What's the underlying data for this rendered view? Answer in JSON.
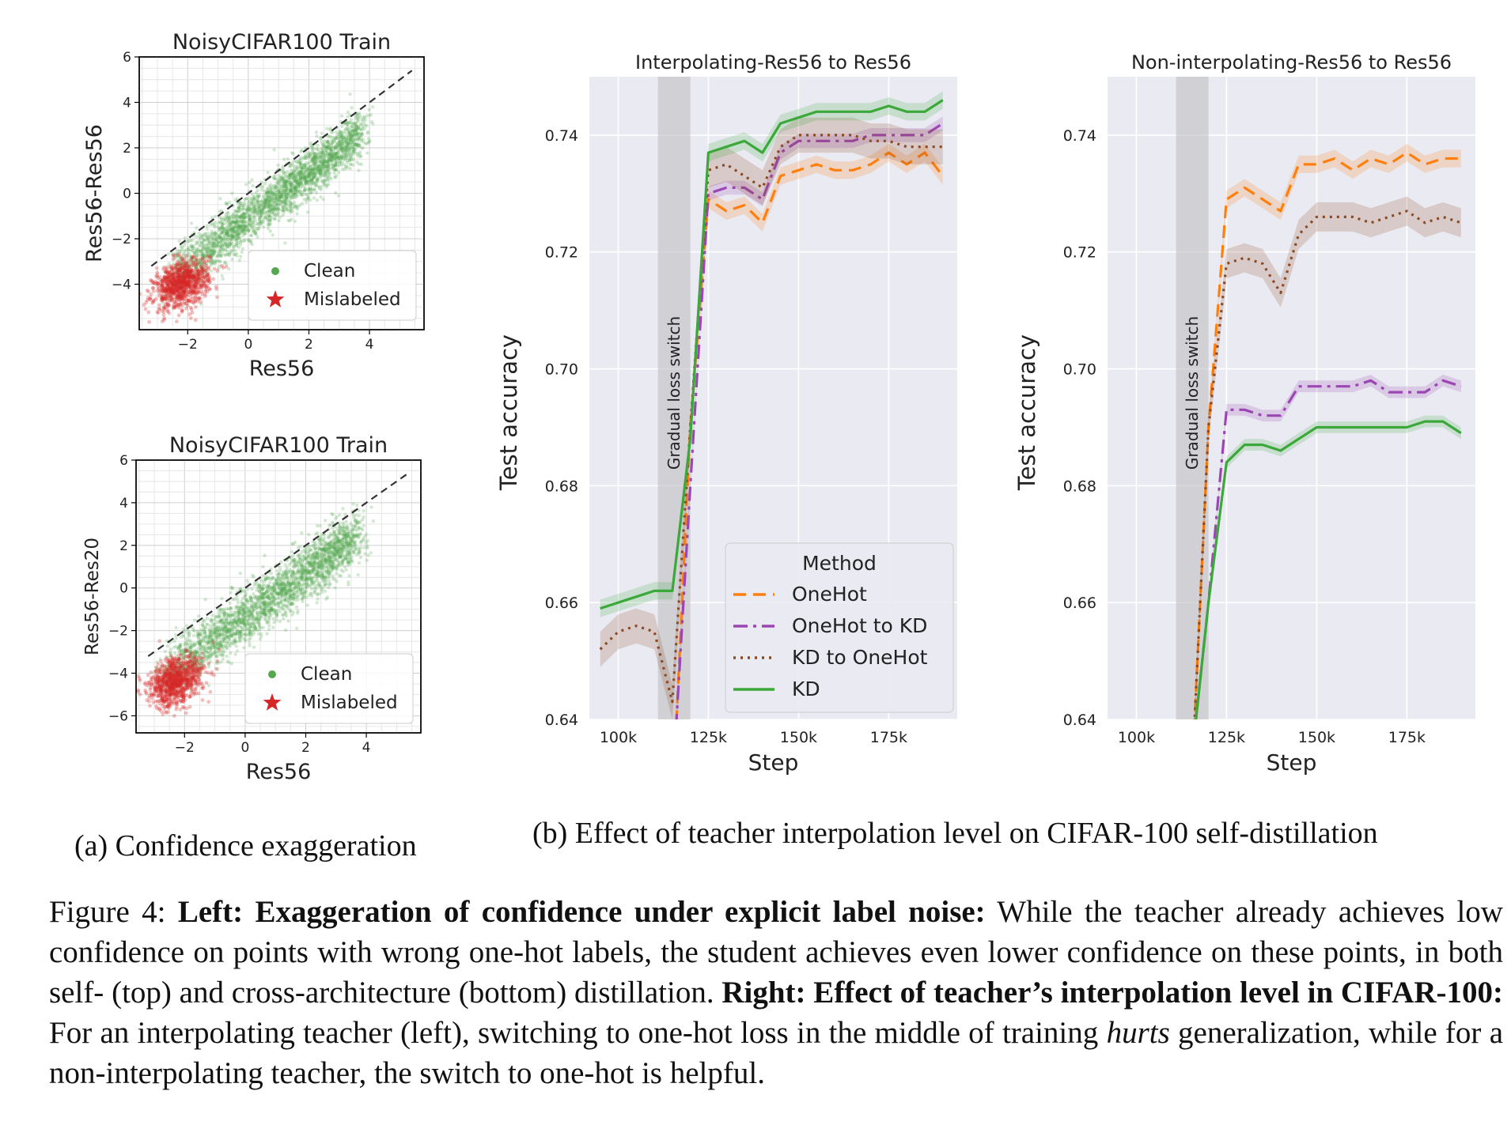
{
  "chart_data": [
    {
      "type": "scatter",
      "title": "NoisyCIFAR100 Train",
      "xlabel": "Res56",
      "ylabel": "Res56-Res56",
      "xlim": [
        -3.6,
        5.8
      ],
      "ylim": [
        -6.0,
        6.0
      ],
      "xticks": [
        "−2",
        "0",
        "2",
        "4"
      ],
      "yticks": [
        "6",
        "4",
        "2",
        "0",
        "−2",
        "−4"
      ],
      "ytick_values": [
        6,
        4,
        2,
        0,
        -2,
        -4
      ],
      "grid": true,
      "legend": [
        "Clean",
        "Mislabeled"
      ],
      "legend_position": "lower-right",
      "reference_line": {
        "x": [
          -3.2,
          5.4
        ],
        "y": [
          -3.2,
          5.4
        ]
      },
      "series": [
        {
          "name": "Clean",
          "color": "#55a84f",
          "marker": "dot",
          "cloud": {
            "x_range": [
              -3.0,
              3.8
            ],
            "relation": "y ≈ x − 1.1",
            "spread": 0.55
          }
        },
        {
          "name": "Mislabeled",
          "color": "#d62728",
          "marker": "star",
          "cloud": {
            "center": [
              -2.2,
              -4.0
            ],
            "spread": [
              0.45,
              0.5
            ]
          }
        }
      ]
    },
    {
      "type": "scatter",
      "title": "NoisyCIFAR100 Train",
      "xlabel": "Res56",
      "ylabel": "Res56-Res20",
      "xlim": [
        -3.6,
        5.8
      ],
      "ylim": [
        -6.8,
        6.0
      ],
      "xticks": [
        "−2",
        "0",
        "2",
        "4"
      ],
      "yticks": [
        "6",
        "4",
        "2",
        "0",
        "−2",
        "−4",
        "−6"
      ],
      "ytick_values": [
        6,
        4,
        2,
        0,
        -2,
        -4,
        -6
      ],
      "grid": true,
      "legend": [
        "Clean",
        "Mislabeled"
      ],
      "legend_position": "lower-right",
      "reference_line": {
        "x": [
          -3.2,
          5.4
        ],
        "y": [
          -3.2,
          5.4
        ]
      },
      "series": [
        {
          "name": "Clean",
          "color": "#55a84f",
          "marker": "dot",
          "cloud": {
            "x_range": [
              -3.0,
              3.8
            ],
            "relation": "y ≈ x − 1.3",
            "spread": 0.65
          }
        },
        {
          "name": "Mislabeled",
          "color": "#d62728",
          "marker": "star",
          "cloud": {
            "center": [
              -2.3,
              -4.4
            ],
            "spread": [
              0.45,
              0.55
            ]
          }
        }
      ]
    },
    {
      "type": "line",
      "title": "Interpolating-Res56 to Res56",
      "xlabel": "Step",
      "ylabel": "Test accuracy",
      "xlim": [
        92000,
        194000
      ],
      "ylim": [
        0.64,
        0.75
      ],
      "xticks": [
        100000,
        125000,
        150000,
        175000
      ],
      "xtick_labels": [
        "100k",
        "125k",
        "150k",
        "175k"
      ],
      "yticks": [
        0.64,
        0.66,
        0.68,
        0.7,
        0.72,
        0.74
      ],
      "ytick_labels": [
        "0.64",
        "0.66",
        "0.68",
        "0.70",
        "0.72",
        "0.74"
      ],
      "shaded_region": {
        "x": [
          111000,
          120000
        ],
        "label": "Gradual loss switch"
      },
      "legend_title": "Method",
      "legend_position": "lower-right",
      "series": [
        {
          "name": "OneHot",
          "color": "#ff7f0e",
          "dash": "dashed",
          "x": [
            95000,
            100000,
            105000,
            110000,
            115000,
            120000,
            125000,
            130000,
            135000,
            140000,
            145000,
            150000,
            155000,
            160000,
            165000,
            170000,
            175000,
            180000,
            185000,
            190000
          ],
          "y": [
            0.634,
            0.633,
            0.632,
            0.63,
            0.625,
            0.69,
            0.729,
            0.727,
            0.728,
            0.725,
            0.733,
            0.734,
            0.735,
            0.734,
            0.734,
            0.735,
            0.737,
            0.735,
            0.737,
            0.733
          ],
          "band": 0.0015
        },
        {
          "name": "OneHot to KD",
          "color": "#9c46b4",
          "dash": "dashdot",
          "x": [
            95000,
            100000,
            105000,
            110000,
            115000,
            120000,
            125000,
            130000,
            135000,
            140000,
            145000,
            150000,
            155000,
            160000,
            165000,
            170000,
            175000,
            180000,
            185000,
            190000
          ],
          "y": [
            0.634,
            0.633,
            0.632,
            0.63,
            0.628,
            0.68,
            0.73,
            0.731,
            0.731,
            0.729,
            0.737,
            0.739,
            0.739,
            0.739,
            0.739,
            0.74,
            0.74,
            0.74,
            0.74,
            0.742
          ],
          "band": 0.0012
        },
        {
          "name": "KD to OneHot",
          "color": "#8c4a24",
          "dash": "dotted",
          "x": [
            95000,
            100000,
            105000,
            110000,
            115000,
            120000,
            125000,
            130000,
            135000,
            140000,
            145000,
            150000,
            155000,
            160000,
            165000,
            170000,
            175000,
            180000,
            185000,
            190000
          ],
          "y": [
            0.652,
            0.655,
            0.656,
            0.655,
            0.643,
            0.69,
            0.734,
            0.735,
            0.733,
            0.731,
            0.738,
            0.74,
            0.74,
            0.74,
            0.74,
            0.739,
            0.739,
            0.738,
            0.738,
            0.738
          ],
          "band": 0.003
        },
        {
          "name": "KD",
          "color": "#3ba83a",
          "dash": "solid",
          "x": [
            95000,
            100000,
            105000,
            110000,
            115000,
            120000,
            125000,
            130000,
            135000,
            140000,
            145000,
            150000,
            155000,
            160000,
            165000,
            170000,
            175000,
            180000,
            185000,
            190000
          ],
          "y": [
            0.659,
            0.66,
            0.661,
            0.662,
            0.662,
            0.688,
            0.737,
            0.738,
            0.739,
            0.737,
            0.742,
            0.743,
            0.744,
            0.744,
            0.744,
            0.744,
            0.745,
            0.744,
            0.744,
            0.746
          ],
          "band": 0.0015
        }
      ]
    },
    {
      "type": "line",
      "title": "Non-interpolating-Res56 to Res56",
      "xlabel": "Step",
      "ylabel": "Test accuracy",
      "xlim": [
        92000,
        194000
      ],
      "ylim": [
        0.64,
        0.75
      ],
      "xticks": [
        100000,
        125000,
        150000,
        175000
      ],
      "xtick_labels": [
        "100k",
        "125k",
        "150k",
        "175k"
      ],
      "yticks": [
        0.64,
        0.66,
        0.68,
        0.7,
        0.72,
        0.74
      ],
      "ytick_labels": [
        "0.64",
        "0.66",
        "0.68",
        "0.70",
        "0.72",
        "0.74"
      ],
      "shaded_region": {
        "x": [
          111000,
          120000
        ],
        "label": "Gradual loss switch"
      },
      "series": [
        {
          "name": "OneHot",
          "color": "#ff7f0e",
          "dash": "dashed",
          "x": [
            116000,
            120000,
            125000,
            130000,
            135000,
            140000,
            145000,
            150000,
            155000,
            160000,
            165000,
            170000,
            175000,
            180000,
            185000,
            190000
          ],
          "y": [
            0.638,
            0.69,
            0.729,
            0.731,
            0.729,
            0.727,
            0.735,
            0.735,
            0.736,
            0.734,
            0.736,
            0.735,
            0.737,
            0.735,
            0.736,
            0.736
          ],
          "band": 0.0015
        },
        {
          "name": "KD to OneHot",
          "color": "#8c4a24",
          "dash": "dotted",
          "x": [
            116000,
            120000,
            125000,
            130000,
            135000,
            140000,
            145000,
            150000,
            155000,
            160000,
            165000,
            170000,
            175000,
            180000,
            185000,
            190000
          ],
          "y": [
            0.638,
            0.69,
            0.718,
            0.719,
            0.718,
            0.713,
            0.723,
            0.726,
            0.726,
            0.726,
            0.725,
            0.726,
            0.727,
            0.725,
            0.726,
            0.725
          ],
          "band": 0.0025
        },
        {
          "name": "OneHot to KD",
          "color": "#9c46b4",
          "dash": "dashdot",
          "x": [
            116000,
            120000,
            125000,
            130000,
            135000,
            140000,
            145000,
            150000,
            155000,
            160000,
            165000,
            170000,
            175000,
            180000,
            185000,
            190000
          ],
          "y": [
            0.637,
            0.66,
            0.693,
            0.693,
            0.692,
            0.692,
            0.697,
            0.697,
            0.697,
            0.697,
            0.698,
            0.696,
            0.696,
            0.696,
            0.698,
            0.697
          ],
          "band": 0.001
        },
        {
          "name": "KD",
          "color": "#3ba83a",
          "dash": "solid",
          "x": [
            116000,
            120000,
            125000,
            130000,
            135000,
            140000,
            145000,
            150000,
            155000,
            160000,
            165000,
            170000,
            175000,
            180000,
            185000,
            190000
          ],
          "y": [
            0.637,
            0.66,
            0.684,
            0.687,
            0.687,
            0.686,
            0.688,
            0.69,
            0.69,
            0.69,
            0.69,
            0.69,
            0.69,
            0.691,
            0.691,
            0.689
          ],
          "band": 0.001
        }
      ]
    }
  ],
  "captions": {
    "a": "(a) Confidence exaggeration",
    "b": "(b) Effect of teacher interpolation level on CIFAR-100 self-distillation"
  },
  "figure_caption": {
    "prefix": "Figure 4: ",
    "left_bold": "Left: Exaggeration of confidence under explicit label noise:",
    "left_text": " While the teacher already achieves low confidence on points with wrong one-hot labels, the student achieves even lower confidence on these points, in both self- (top) and cross-architecture (bottom) distillation. ",
    "right_bold": "Right: Effect of teacher’s interpolation level in CIFAR-100:",
    "right_text_1": " For an interpolating teacher (left), switching to one-hot loss in the middle of training ",
    "right_italic": "hurts",
    "right_text_2": " generalization, while for a non-interpolating teacher, the switch to one-hot is helpful."
  }
}
